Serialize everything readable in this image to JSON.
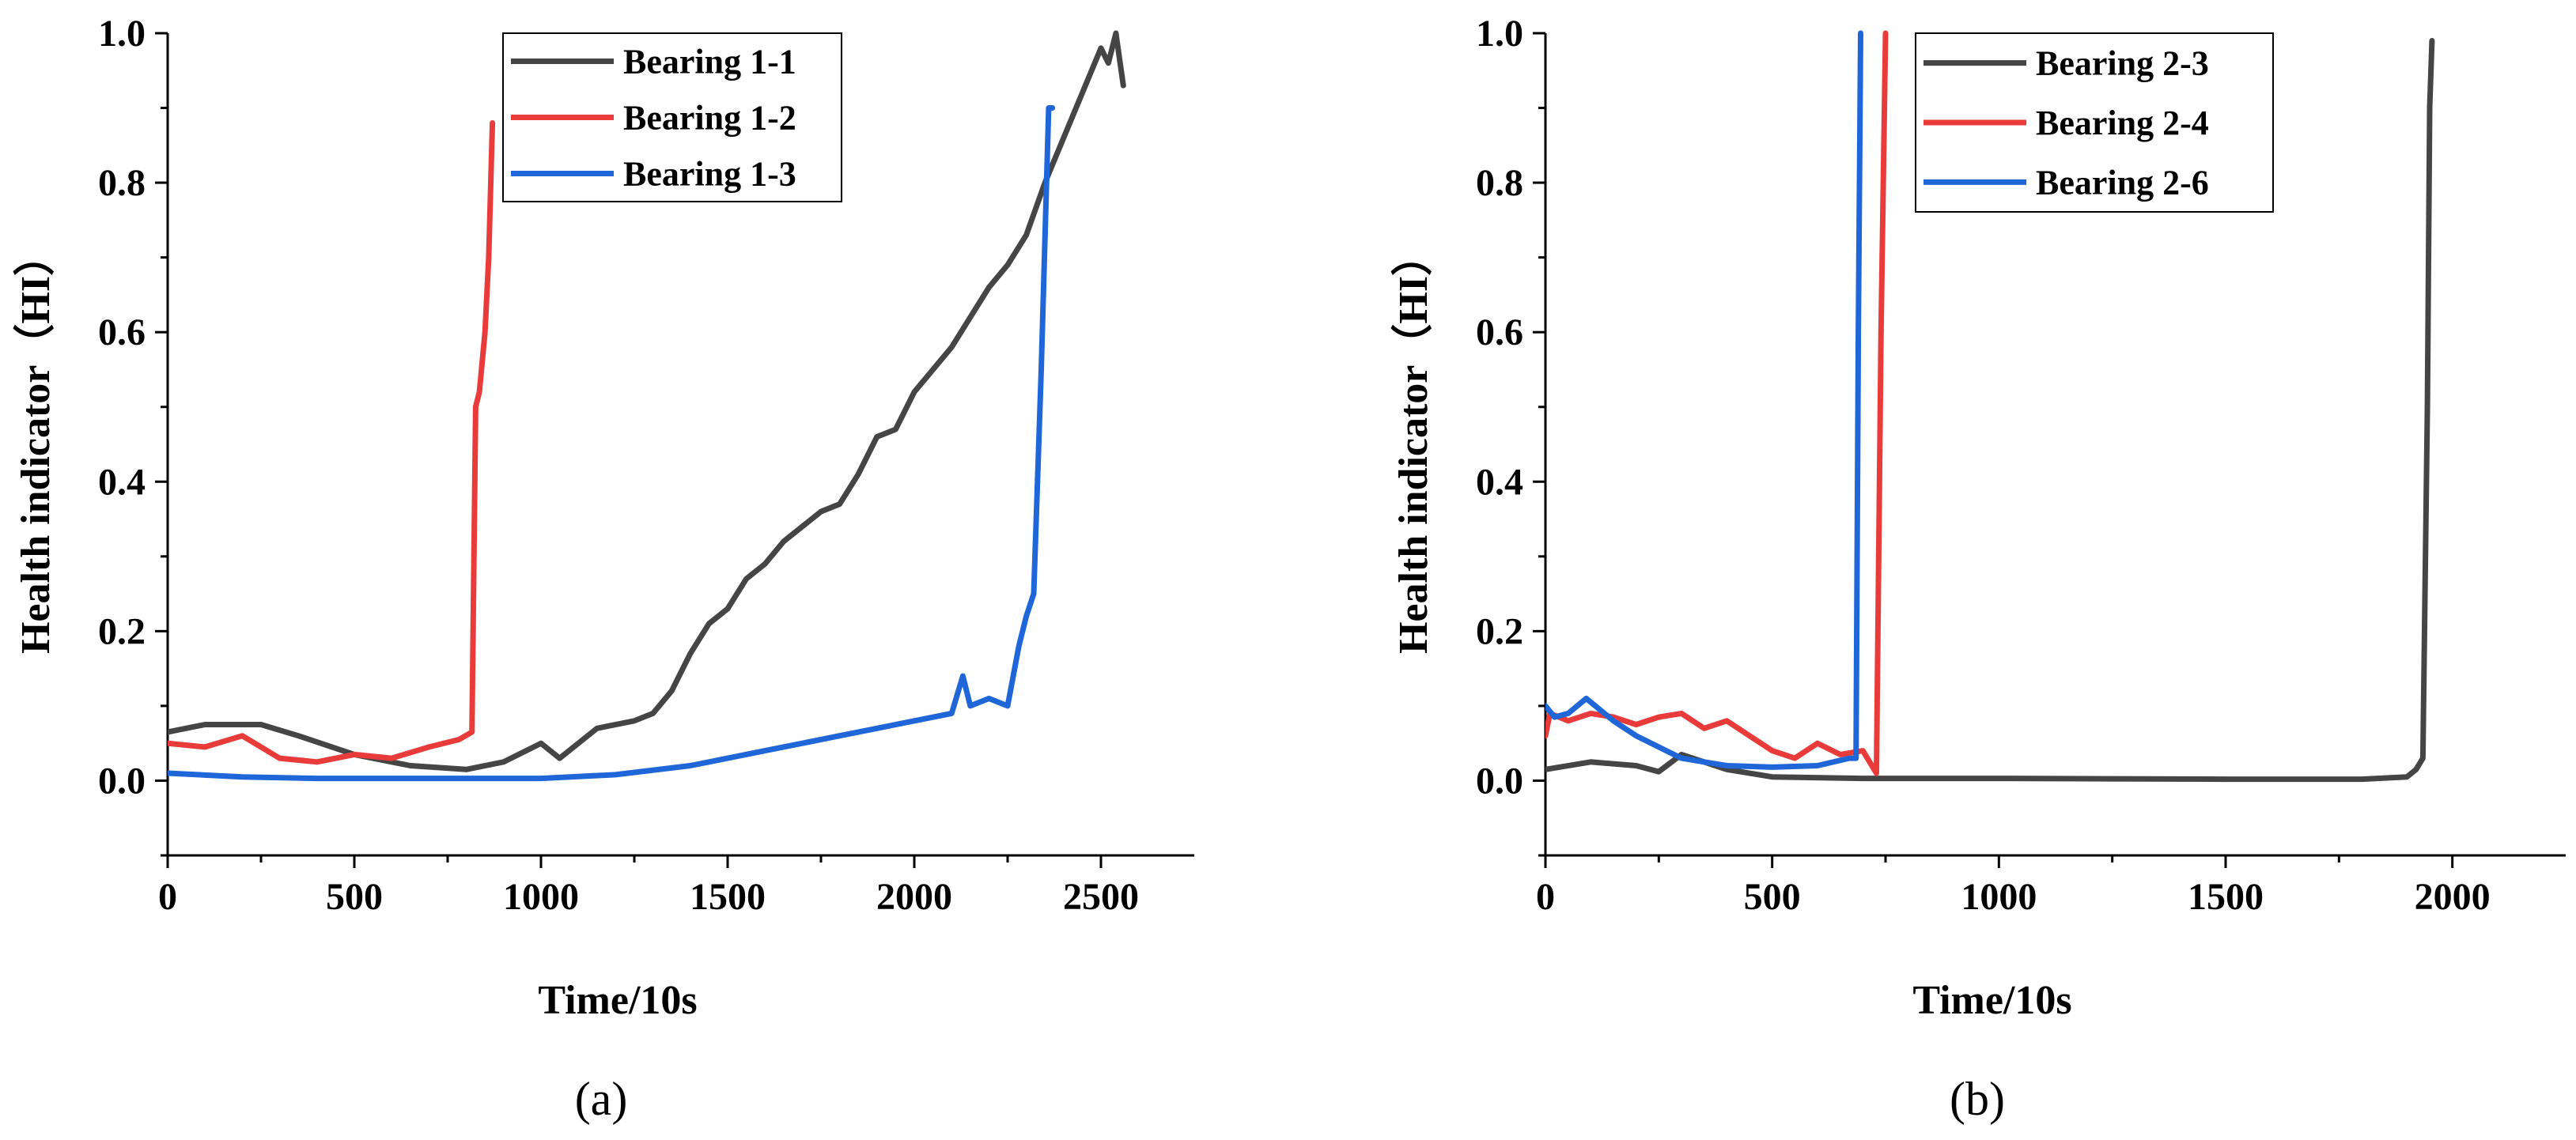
{
  "chart_data": [
    {
      "type": "line",
      "panel_label": "(a)",
      "xlabel": "Time/10s",
      "ylabel": "Health indicator（HI）",
      "xlim": [
        0,
        2750
      ],
      "ylim": [
        -0.1,
        1.0
      ],
      "xticks": [
        0,
        500,
        1000,
        1500,
        2000,
        2500
      ],
      "xtick_labels": [
        "0",
        "500",
        "1000",
        "1500",
        "2000",
        "2500"
      ],
      "yticks": [
        0.0,
        0.2,
        0.4,
        0.6,
        0.8,
        1.0
      ],
      "ytick_labels": [
        "0.0",
        "0.2",
        "0.4",
        "0.6",
        "0.8",
        "1.0"
      ],
      "legend_position": "top-right",
      "series": [
        {
          "name": "Bearing 1-1",
          "color": "#454545",
          "x": [
            0,
            100,
            250,
            350,
            500,
            650,
            800,
            900,
            1000,
            1050,
            1150,
            1250,
            1300,
            1350,
            1400,
            1450,
            1500,
            1550,
            1600,
            1650,
            1700,
            1750,
            1800,
            1850,
            1900,
            1950,
            2000,
            2050,
            2100,
            2150,
            2200,
            2250,
            2300,
            2350,
            2400,
            2450,
            2500,
            2520,
            2540,
            2560
          ],
          "y": [
            0.065,
            0.075,
            0.075,
            0.06,
            0.035,
            0.02,
            0.015,
            0.025,
            0.05,
            0.03,
            0.07,
            0.08,
            0.09,
            0.12,
            0.17,
            0.21,
            0.23,
            0.27,
            0.29,
            0.32,
            0.34,
            0.36,
            0.37,
            0.41,
            0.46,
            0.47,
            0.52,
            0.55,
            0.58,
            0.62,
            0.66,
            0.69,
            0.73,
            0.8,
            0.86,
            0.92,
            0.98,
            0.96,
            1.0,
            0.93
          ]
        },
        {
          "name": "Bearing 1-2",
          "color": "#ea3b3b",
          "x": [
            0,
            100,
            200,
            300,
            400,
            500,
            600,
            700,
            780,
            815,
            825,
            835,
            850,
            860,
            870
          ],
          "y": [
            0.05,
            0.045,
            0.06,
            0.03,
            0.025,
            0.035,
            0.03,
            0.045,
            0.055,
            0.065,
            0.5,
            0.52,
            0.6,
            0.7,
            0.88
          ]
        },
        {
          "name": "Bearing 1-3",
          "color": "#1f66d8",
          "x": [
            0,
            200,
            400,
            600,
            800,
            1000,
            1200,
            1400,
            1500,
            1600,
            1700,
            1800,
            1900,
            2000,
            2100,
            2130,
            2150,
            2200,
            2250,
            2280,
            2300,
            2320,
            2340,
            2360,
            2370
          ],
          "y": [
            0.01,
            0.005,
            0.003,
            0.003,
            0.003,
            0.003,
            0.008,
            0.02,
            0.03,
            0.04,
            0.05,
            0.06,
            0.07,
            0.08,
            0.09,
            0.14,
            0.1,
            0.11,
            0.1,
            0.18,
            0.22,
            0.25,
            0.55,
            0.9,
            0.9
          ]
        }
      ]
    },
    {
      "type": "line",
      "panel_label": "(b)",
      "xlabel": "Time/10s",
      "ylabel": "Health indicator（HI）",
      "xlim": [
        0,
        2250
      ],
      "ylim": [
        -0.1,
        1.0
      ],
      "xticks": [
        0,
        500,
        1000,
        1500,
        2000
      ],
      "xtick_labels": [
        "0",
        "500",
        "1000",
        "1500",
        "2000"
      ],
      "yticks": [
        0.0,
        0.2,
        0.4,
        0.6,
        0.8,
        1.0
      ],
      "ytick_labels": [
        "0.0",
        "0.2",
        "0.4",
        "0.6",
        "0.8",
        "1.0"
      ],
      "legend_position": "top-right",
      "series": [
        {
          "name": "Bearing 2-3",
          "color": "#454545",
          "x": [
            0,
            100,
            200,
            250,
            300,
            400,
            500,
            700,
            1000,
            1500,
            1800,
            1900,
            1920,
            1935,
            1945,
            1950,
            1955
          ],
          "y": [
            0.015,
            0.025,
            0.02,
            0.012,
            0.035,
            0.015,
            0.005,
            0.003,
            0.003,
            0.002,
            0.002,
            0.005,
            0.015,
            0.03,
            0.5,
            0.9,
            0.99
          ]
        },
        {
          "name": "Bearing 2-4",
          "color": "#ea3b3b",
          "x": [
            0,
            10,
            50,
            100,
            150,
            200,
            250,
            300,
            350,
            400,
            450,
            500,
            550,
            600,
            650,
            700,
            730,
            740,
            750
          ],
          "y": [
            0.06,
            0.09,
            0.08,
            0.09,
            0.085,
            0.075,
            0.085,
            0.09,
            0.07,
            0.08,
            0.06,
            0.04,
            0.03,
            0.05,
            0.035,
            0.04,
            0.01,
            0.6,
            1.0
          ]
        },
        {
          "name": "Bearing 2-6",
          "color": "#1f66d8",
          "x": [
            0,
            20,
            50,
            90,
            150,
            200,
            300,
            400,
            500,
            600,
            670,
            685,
            690,
            695
          ],
          "y": [
            0.1,
            0.085,
            0.09,
            0.11,
            0.08,
            0.06,
            0.03,
            0.02,
            0.018,
            0.02,
            0.03,
            0.03,
            0.6,
            1.0
          ]
        }
      ]
    }
  ]
}
